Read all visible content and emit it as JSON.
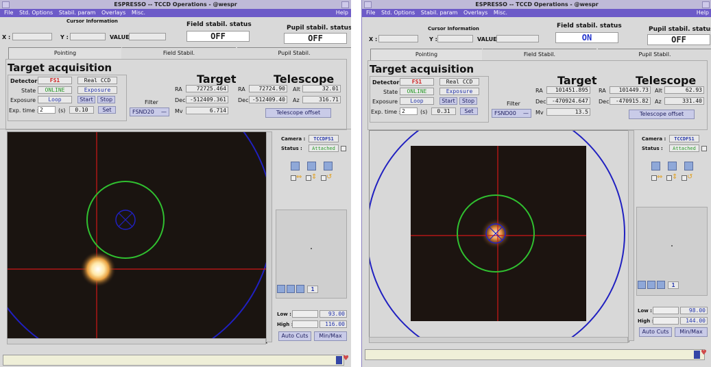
{
  "windows": [
    {
      "title": "ESPRESSO -- TCCD Operations - @wespr",
      "menu": [
        "File",
        "Std. Options",
        "Stabil. param",
        "Overlays",
        "Misc."
      ],
      "help": "Help",
      "cursor": {
        "heading": "Cursor Information",
        "x_label": "X :",
        "y_label": "Y :",
        "value_label": "VALUE :",
        "x": "",
        "y": "",
        "value": ""
      },
      "field_stabil": {
        "label": "Field stabil. status",
        "value": "OFF",
        "color": "#202020"
      },
      "pupil_stabil": {
        "label": "Pupil stabil. status",
        "value": "OFF",
        "color": "#202020"
      },
      "tabs": [
        "Pointing",
        "Field Stabil.",
        "Pupil Stabil."
      ],
      "section_title": "Target acquisition",
      "detector": {
        "label": "Detector",
        "value": "FS1",
        "mode": "Real CCD"
      },
      "state": {
        "label": "State",
        "value": "ONLINE",
        "mode": "Exposure"
      },
      "exposure": {
        "label": "Exposure",
        "value": "Loop",
        "start": "Start",
        "stop": "Stop"
      },
      "exp_time": {
        "label": "Exp. time :",
        "value": "2",
        "unit": "(s)",
        "actual": "0.10",
        "set": "Set"
      },
      "filter": {
        "label": "Filter",
        "value": "FSND20"
      },
      "target": {
        "heading": "Target",
        "ra_label": "RA",
        "ra": "72725.464",
        "dec_label": "Dec",
        "dec": "-512409.361",
        "mv_label": "Mv",
        "mv": "6.714"
      },
      "telescope": {
        "heading": "Telescope",
        "ra_label": "RA",
        "ra": "72724.90",
        "dec_label": "Dec",
        "dec": "-512409.40",
        "alt_label": "Alt",
        "alt": "32.01",
        "az_label": "Az",
        "az": "316.71",
        "offset": "Telescope offset"
      },
      "camera": {
        "label": "Camera :",
        "value": "TCCDFS1",
        "status_label": "Status :",
        "status": "Attached"
      },
      "zoom_value": "1",
      "cuts": {
        "low_label": "Low :",
        "low": "93.00",
        "high_label": "High :",
        "high": "116.00",
        "auto": "Auto Cuts",
        "minmax": "Min/Max"
      }
    },
    {
      "title": "ESPRESSO -- TCCD Operations - @wespr",
      "menu": [
        "File",
        "Std. Options",
        "Stabil. param",
        "Overlays",
        "Misc."
      ],
      "help": "Help",
      "cursor": {
        "heading": "Cursor Information",
        "x_label": "X :",
        "y_label": "Y :",
        "value_label": "VALUE :",
        "x": "",
        "y": "",
        "value": ""
      },
      "field_stabil": {
        "label": "Field stabil. status",
        "value": "ON",
        "color": "#2233cc"
      },
      "pupil_stabil": {
        "label": "Pupil stabil. status",
        "value": "OFF",
        "color": "#202020"
      },
      "tabs": [
        "Pointing",
        "Field Stabil.",
        "Pupil Stabil."
      ],
      "section_title": "Target acquisition",
      "detector": {
        "label": "Detector",
        "value": "FS1",
        "mode": "Real CCD"
      },
      "state": {
        "label": "State",
        "value": "ONLINE",
        "mode": "Exposure"
      },
      "exposure": {
        "label": "Exposure",
        "value": "Loop",
        "start": "Start",
        "stop": "Stop"
      },
      "exp_time": {
        "label": "Exp. time :",
        "value": "2",
        "unit": "(s)",
        "actual": "0.31",
        "set": "Set"
      },
      "filter": {
        "label": "Filter",
        "value": "FSND00"
      },
      "target": {
        "heading": "Target",
        "ra_label": "RA",
        "ra": "101451.895",
        "dec_label": "Dec",
        "dec": "-470924.647",
        "mv_label": "Mv",
        "mv": "13.5"
      },
      "telescope": {
        "heading": "Telescope",
        "ra_label": "RA",
        "ra": "101449.73",
        "dec_label": "Dec",
        "dec": "-470915.82",
        "alt_label": "Alt",
        "alt": "62.93",
        "az_label": "Az",
        "az": "331.40",
        "offset": "Telescope offset"
      },
      "camera": {
        "label": "Camera :",
        "value": "TCCDFS1",
        "status_label": "Status :",
        "status": "Attached"
      },
      "zoom_value": "1",
      "cuts": {
        "low_label": "Low :",
        "low": "98.00",
        "high_label": "High :",
        "high": "144.00",
        "auto": "Auto Cuts",
        "minmax": "Min/Max"
      }
    }
  ]
}
